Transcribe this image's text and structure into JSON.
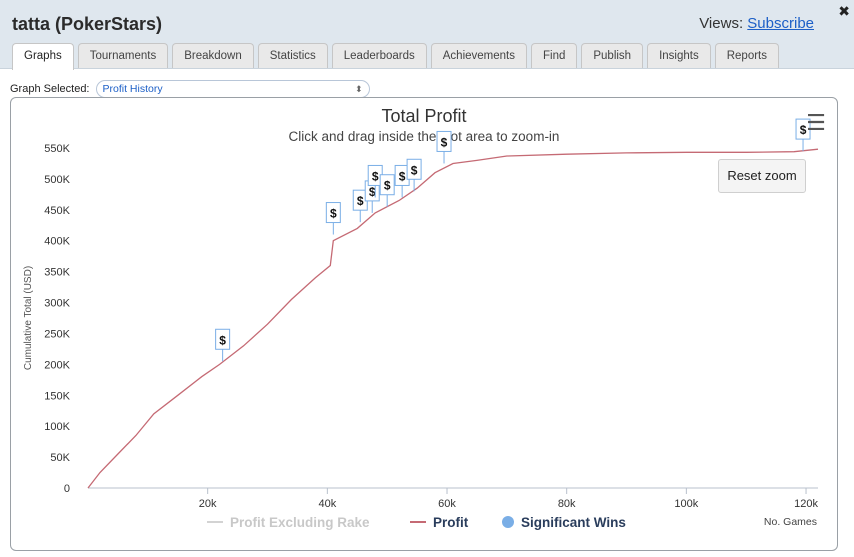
{
  "window": {
    "title": "tatta (PokerStars)",
    "views_label": "Views:",
    "subscribe_label": "Subscribe",
    "close_glyph": "✖"
  },
  "tabs": [
    {
      "label": "Graphs",
      "active": true
    },
    {
      "label": "Tournaments"
    },
    {
      "label": "Breakdown"
    },
    {
      "label": "Statistics"
    },
    {
      "label": "Leaderboards"
    },
    {
      "label": "Achievements"
    },
    {
      "label": "Find"
    },
    {
      "label": "Publish"
    },
    {
      "label": "Insights"
    },
    {
      "label": "Reports"
    }
  ],
  "graph_selector": {
    "label": "Graph Selected:",
    "value": "Profit History"
  },
  "chart_data": {
    "type": "line",
    "title": "Total Profit",
    "subtitle": "Click and drag inside the plot area to zoom-in",
    "ylabel": "Cumulative Total (USD)",
    "xlabel": "No. Games",
    "xlim": [
      0,
      122000
    ],
    "ylim": [
      0,
      550000
    ],
    "x_ticks": [
      20000,
      40000,
      60000,
      80000,
      100000,
      120000
    ],
    "x_tick_labels": [
      "20k",
      "40k",
      "60k",
      "80k",
      "100k",
      "120k"
    ],
    "y_ticks": [
      0,
      50000,
      100000,
      150000,
      200000,
      250000,
      300000,
      350000,
      400000,
      450000,
      500000,
      550000
    ],
    "y_tick_labels": [
      "0",
      "50K",
      "100K",
      "150K",
      "200K",
      "250K",
      "300K",
      "350K",
      "400K",
      "450K",
      "500K",
      "550K"
    ],
    "grid": false,
    "legend_placement": "bottom",
    "series": [
      {
        "name": "Profit",
        "color": "#c56a74",
        "points": [
          [
            0,
            0
          ],
          [
            2000,
            25000
          ],
          [
            5000,
            55000
          ],
          [
            8000,
            85000
          ],
          [
            11000,
            120000
          ],
          [
            15000,
            150000
          ],
          [
            19000,
            180000
          ],
          [
            22000,
            200000
          ],
          [
            26000,
            230000
          ],
          [
            30000,
            265000
          ],
          [
            34000,
            305000
          ],
          [
            38000,
            340000
          ],
          [
            40500,
            360000
          ],
          [
            41000,
            400000
          ],
          [
            45000,
            420000
          ],
          [
            48000,
            445000
          ],
          [
            52000,
            465000
          ],
          [
            55000,
            485000
          ],
          [
            58000,
            510000
          ],
          [
            61000,
            525000
          ],
          [
            65000,
            530000
          ],
          [
            70000,
            537000
          ],
          [
            80000,
            540000
          ],
          [
            90000,
            542000
          ],
          [
            100000,
            543000
          ],
          [
            110000,
            543000
          ],
          [
            118000,
            544000
          ],
          [
            122000,
            548000
          ]
        ]
      },
      {
        "name": "Profit Excluding Rake",
        "color": "#d3d3d3",
        "hidden": true,
        "points": []
      }
    ],
    "markers": {
      "name": "Significant Wins",
      "color": "#7aaee6",
      "glyph": "$",
      "points": [
        [
          22500,
          205000
        ],
        [
          41000,
          410000
        ],
        [
          45500,
          430000
        ],
        [
          47500,
          445000
        ],
        [
          48000,
          470000
        ],
        [
          50000,
          455000
        ],
        [
          52500,
          470000
        ],
        [
          54500,
          480000
        ],
        [
          59500,
          525000
        ],
        [
          119500,
          545000
        ]
      ]
    }
  },
  "buttons": {
    "reset_zoom": "Reset zoom",
    "menu_glyph": "☰"
  }
}
